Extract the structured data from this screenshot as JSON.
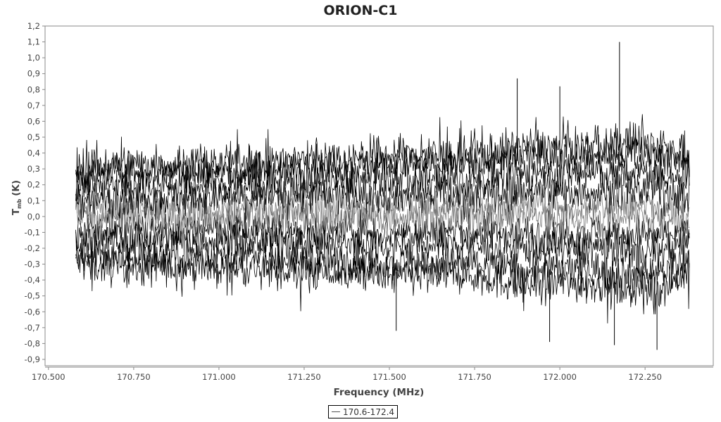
{
  "chart_data": {
    "type": "line",
    "title": "ORION-C1",
    "xlabel": "Frequency (MHz)",
    "ylabel": "T_mb (K)",
    "ylabel_main": "T",
    "ylabel_sub": "mb",
    "ylabel_unit": "(K)",
    "xlim": [
      170.49,
      172.45
    ],
    "ylim": [
      -0.94,
      1.2
    ],
    "x_ticks": [
      "170.500",
      "170.750",
      "171.000",
      "171.250",
      "171.500",
      "171.750",
      "172.000",
      "172.250"
    ],
    "x_tick_values": [
      170.5,
      170.75,
      171.0,
      171.25,
      171.5,
      171.75,
      172.0,
      172.25
    ],
    "y_ticks": [
      "1,2",
      "1,1",
      "1,0",
      "0,9",
      "0,8",
      "0,7",
      "0,6",
      "0,5",
      "0,4",
      "0,3",
      "0,2",
      "0,1",
      "0,0",
      "-0,1",
      "-0,2",
      "-0,3",
      "-0,4",
      "-0,5",
      "-0,6",
      "-0,7",
      "-0,8",
      "-0,9"
    ],
    "y_tick_values": [
      1.2,
      1.1,
      1.0,
      0.9,
      0.8,
      0.7,
      0.6,
      0.5,
      0.4,
      0.3,
      0.2,
      0.1,
      0.0,
      -0.1,
      -0.2,
      -0.3,
      -0.4,
      -0.5,
      -0.6,
      -0.7,
      -0.8,
      -0.9
    ],
    "grid": false,
    "legend_position": "bottom",
    "series": [
      {
        "name": "170.6-172.4",
        "color": "#000000",
        "x_range": [
          170.58,
          172.38
        ],
        "envelope_x": [
          170.6,
          170.7,
          170.8,
          170.9,
          171.0,
          171.1,
          171.2,
          171.3,
          171.4,
          171.5,
          171.6,
          171.7,
          171.8,
          171.9,
          172.0,
          172.1,
          172.2,
          172.3,
          172.38
        ],
        "envelope_upper": [
          0.48,
          0.5,
          0.52,
          0.5,
          0.55,
          0.55,
          0.55,
          0.65,
          0.62,
          0.6,
          0.65,
          0.6,
          0.65,
          0.75,
          0.7,
          0.7,
          0.75,
          0.72,
          0.6
        ],
        "envelope_lower": [
          -0.55,
          -0.6,
          -0.6,
          -0.58,
          -0.55,
          -0.55,
          -0.6,
          -0.6,
          -0.6,
          -0.7,
          -0.65,
          -0.65,
          -0.7,
          -0.75,
          -0.75,
          -0.75,
          -0.8,
          -0.8,
          -0.6
        ],
        "peaks": [
          {
            "x": 172.175,
            "y": 1.1
          },
          {
            "x": 171.875,
            "y": 0.87
          },
          {
            "x": 172.0,
            "y": 0.82
          },
          {
            "x": 172.285,
            "y": -0.84
          },
          {
            "x": 172.16,
            "y": -0.81
          },
          {
            "x": 171.97,
            "y": -0.79
          },
          {
            "x": 171.52,
            "y": -0.72
          }
        ]
      }
    ]
  }
}
